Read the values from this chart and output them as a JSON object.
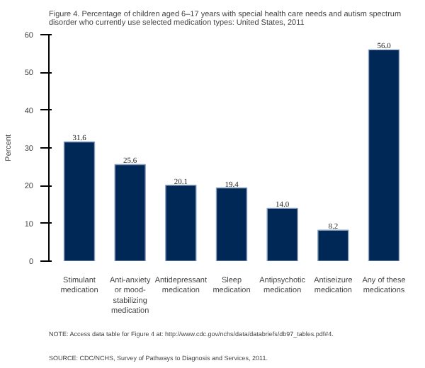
{
  "chart_data": {
    "type": "bar",
    "title": "Figure 4. Percentage of children aged 6–17 years with special health care needs and autism spectrum disorder who currently use selected medication types: United States, 2011",
    "ylabel": "Percent",
    "categories": [
      "Stimulant medication",
      "Anti-anxiety or mood-stabilizing medication",
      "Antidepressant medication",
      "Sleep medication",
      "Antipsychotic medication",
      "Antiseizure medication",
      "Any of these medications"
    ],
    "values": [
      31.6,
      25.6,
      20.1,
      19.4,
      14.0,
      8.2,
      56.0
    ],
    "value_labels": [
      "31.6",
      "25.6",
      "20.1",
      "19.4",
      "14.0",
      "8.2",
      "56.0"
    ],
    "color": "#002856",
    "ylim": [
      0,
      60
    ],
    "yticks": [
      0,
      10,
      20,
      30,
      40,
      50,
      60
    ],
    "grid": false,
    "annotations": [
      "NOTE: Access data table for Figure 4 at: http://www.cdc.gov/nchs/data/databriefs/db97_tables.pdf#4.",
      "SOURCE: CDC/NCHS, Survey of Pathways to Diagnosis and Services, 2011."
    ]
  }
}
